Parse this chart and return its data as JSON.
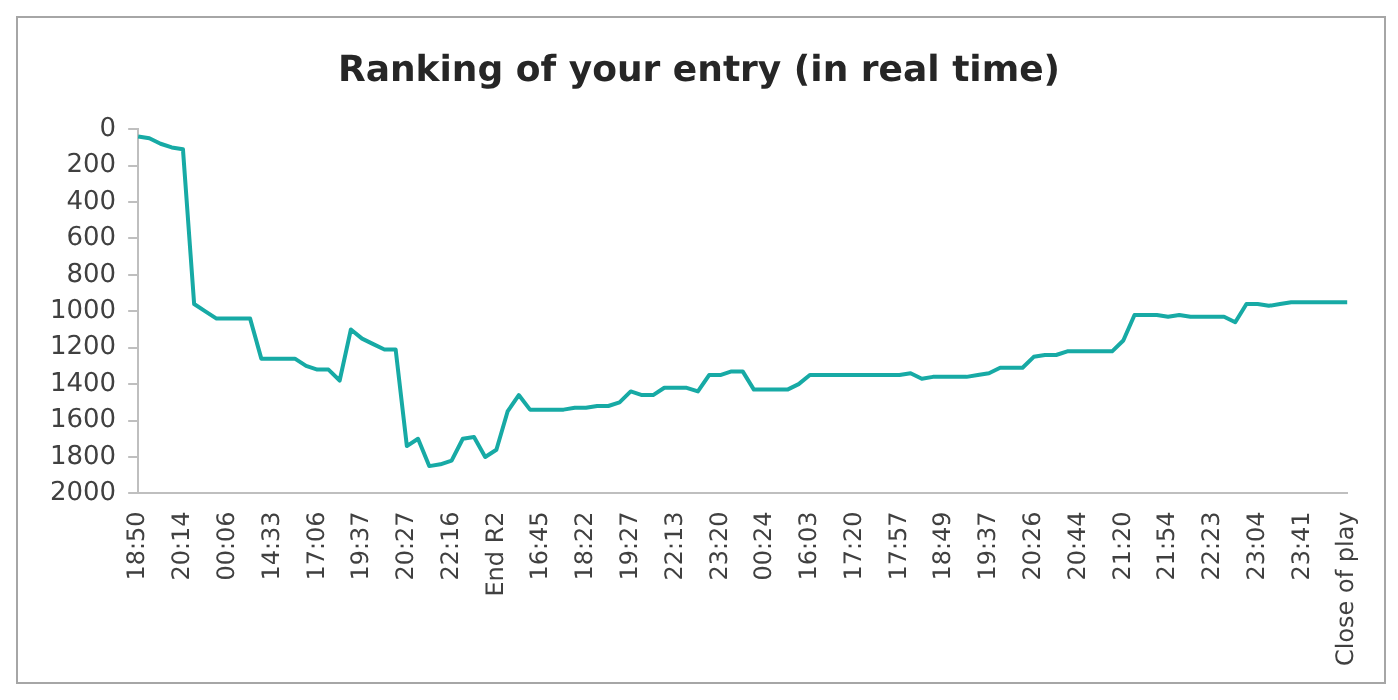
{
  "chart_data": {
    "type": "line",
    "title": "Ranking of your entry (in real time)",
    "categories": [
      "18:50",
      null,
      null,
      null,
      "20:14",
      null,
      null,
      null,
      "00:06",
      null,
      null,
      null,
      "14:33",
      null,
      null,
      null,
      "17:06",
      null,
      null,
      null,
      "19:37",
      null,
      null,
      null,
      "20:27",
      null,
      null,
      null,
      "22:16",
      null,
      null,
      null,
      "End R2",
      null,
      null,
      null,
      "16:45",
      null,
      null,
      null,
      "18:22",
      null,
      null,
      null,
      "19:27",
      null,
      null,
      null,
      "22:13",
      null,
      null,
      null,
      "23:20",
      null,
      null,
      null,
      "00:24",
      null,
      null,
      null,
      "16:03",
      null,
      null,
      null,
      "17:20",
      null,
      null,
      null,
      "17:57",
      null,
      null,
      null,
      "18:49",
      null,
      null,
      null,
      "19:37",
      null,
      null,
      null,
      "20:26",
      null,
      null,
      null,
      "20:44",
      null,
      null,
      null,
      "21:20",
      null,
      null,
      null,
      "21:54",
      null,
      null,
      null,
      "22:23",
      null,
      null,
      null,
      "23:04",
      null,
      null,
      null,
      "23:41",
      null,
      null,
      null,
      "Close of play"
    ],
    "series": [
      {
        "color": "#17aaa5",
        "values": [
          40,
          50,
          80,
          100,
          110,
          960,
          1000,
          1040,
          1040,
          1040,
          1040,
          1260,
          1260,
          1260,
          1260,
          1300,
          1320,
          1320,
          1380,
          1100,
          1150,
          1180,
          1210,
          1210,
          1740,
          1700,
          1850,
          1840,
          1820,
          1700,
          1690,
          1800,
          1760,
          1550,
          1460,
          1540,
          1540,
          1540,
          1540,
          1530,
          1530,
          1520,
          1520,
          1500,
          1440,
          1460,
          1460,
          1420,
          1420,
          1420,
          1440,
          1350,
          1350,
          1330,
          1330,
          1430,
          1430,
          1430,
          1430,
          1400,
          1350,
          1350,
          1350,
          1350,
          1350,
          1350,
          1350,
          1350,
          1350,
          1340,
          1370,
          1360,
          1360,
          1360,
          1360,
          1350,
          1340,
          1310,
          1310,
          1310,
          1250,
          1240,
          1240,
          1220,
          1220,
          1220,
          1220,
          1220,
          1160,
          1020,
          1020,
          1020,
          1030,
          1020,
          1030,
          1030,
          1030,
          1030,
          1060,
          960,
          960,
          970,
          960,
          950,
          950,
          950,
          950,
          950,
          950
        ]
      }
    ],
    "ylim": [
      2000,
      0
    ],
    "yticks": [
      0,
      200,
      400,
      600,
      800,
      1000,
      1200,
      1400,
      1600,
      1800,
      2000
    ],
    "grid": false,
    "legend": false,
    "marker": "none",
    "line_style": "solid"
  }
}
